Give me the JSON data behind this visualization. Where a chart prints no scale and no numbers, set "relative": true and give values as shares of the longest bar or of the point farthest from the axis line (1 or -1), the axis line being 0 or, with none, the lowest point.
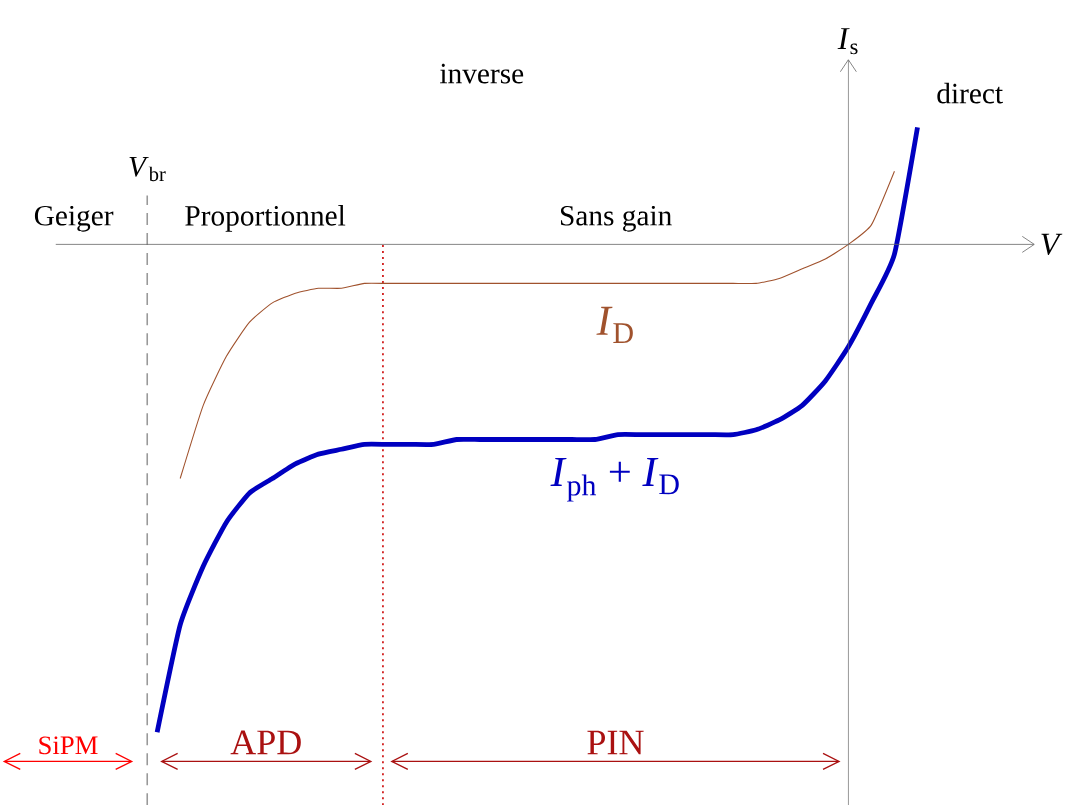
{
  "chart_data": {
    "type": "line",
    "relative": true,
    "xlabel": "*V*",
    "ylabel": "*I*$_{s}$",
    "categories": [
      null,
      null,
      null,
      null,
      null,
      null,
      null,
      null,
      null,
      null,
      null,
      null,
      null,
      null,
      null,
      null,
      null,
      null,
      null,
      null,
      null,
      null,
      null,
      null,
      null,
      null,
      null,
      null,
      null,
      null,
      null,
      null,
      null,
      null
    ],
    "series": [
      {
        "name": "*I*$_{D}$",
        "color": "#a0522d",
        "values": [
          null,
          -0.48,
          -0.33,
          -0.23,
          -0.16,
          -0.12,
          -0.1,
          -0.09,
          -0.09,
          -0.08,
          -0.08,
          -0.08,
          -0.08,
          -0.08,
          -0.08,
          -0.08,
          -0.08,
          -0.08,
          -0.08,
          -0.08,
          -0.08,
          -0.08,
          -0.08,
          -0.08,
          -0.08,
          -0.08,
          -0.08,
          -0.07,
          -0.05,
          -0.03,
          0.0,
          0.04,
          0.15,
          null
        ]
      },
      {
        "name": "*I*$_{ph}$ + *I*$_{D}$",
        "color": "#0000c0",
        "values": [
          -1.0,
          -0.78,
          -0.66,
          -0.57,
          -0.51,
          -0.48,
          -0.45,
          -0.43,
          -0.42,
          -0.41,
          -0.41,
          -0.41,
          -0.41,
          -0.4,
          -0.4,
          -0.4,
          -0.4,
          -0.4,
          -0.4,
          -0.4,
          -0.39,
          -0.39,
          -0.39,
          -0.39,
          -0.39,
          -0.39,
          -0.38,
          -0.36,
          -0.33,
          -0.28,
          -0.21,
          -0.12,
          -0.02,
          0.24
        ]
      }
    ],
    "annotations": [
      "Geiger",
      "Proportionnel",
      "Sans gain",
      "inverse",
      "direct",
      "*V*$_{br}$",
      "SiPM",
      "APD",
      "PIN"
    ]
  }
}
